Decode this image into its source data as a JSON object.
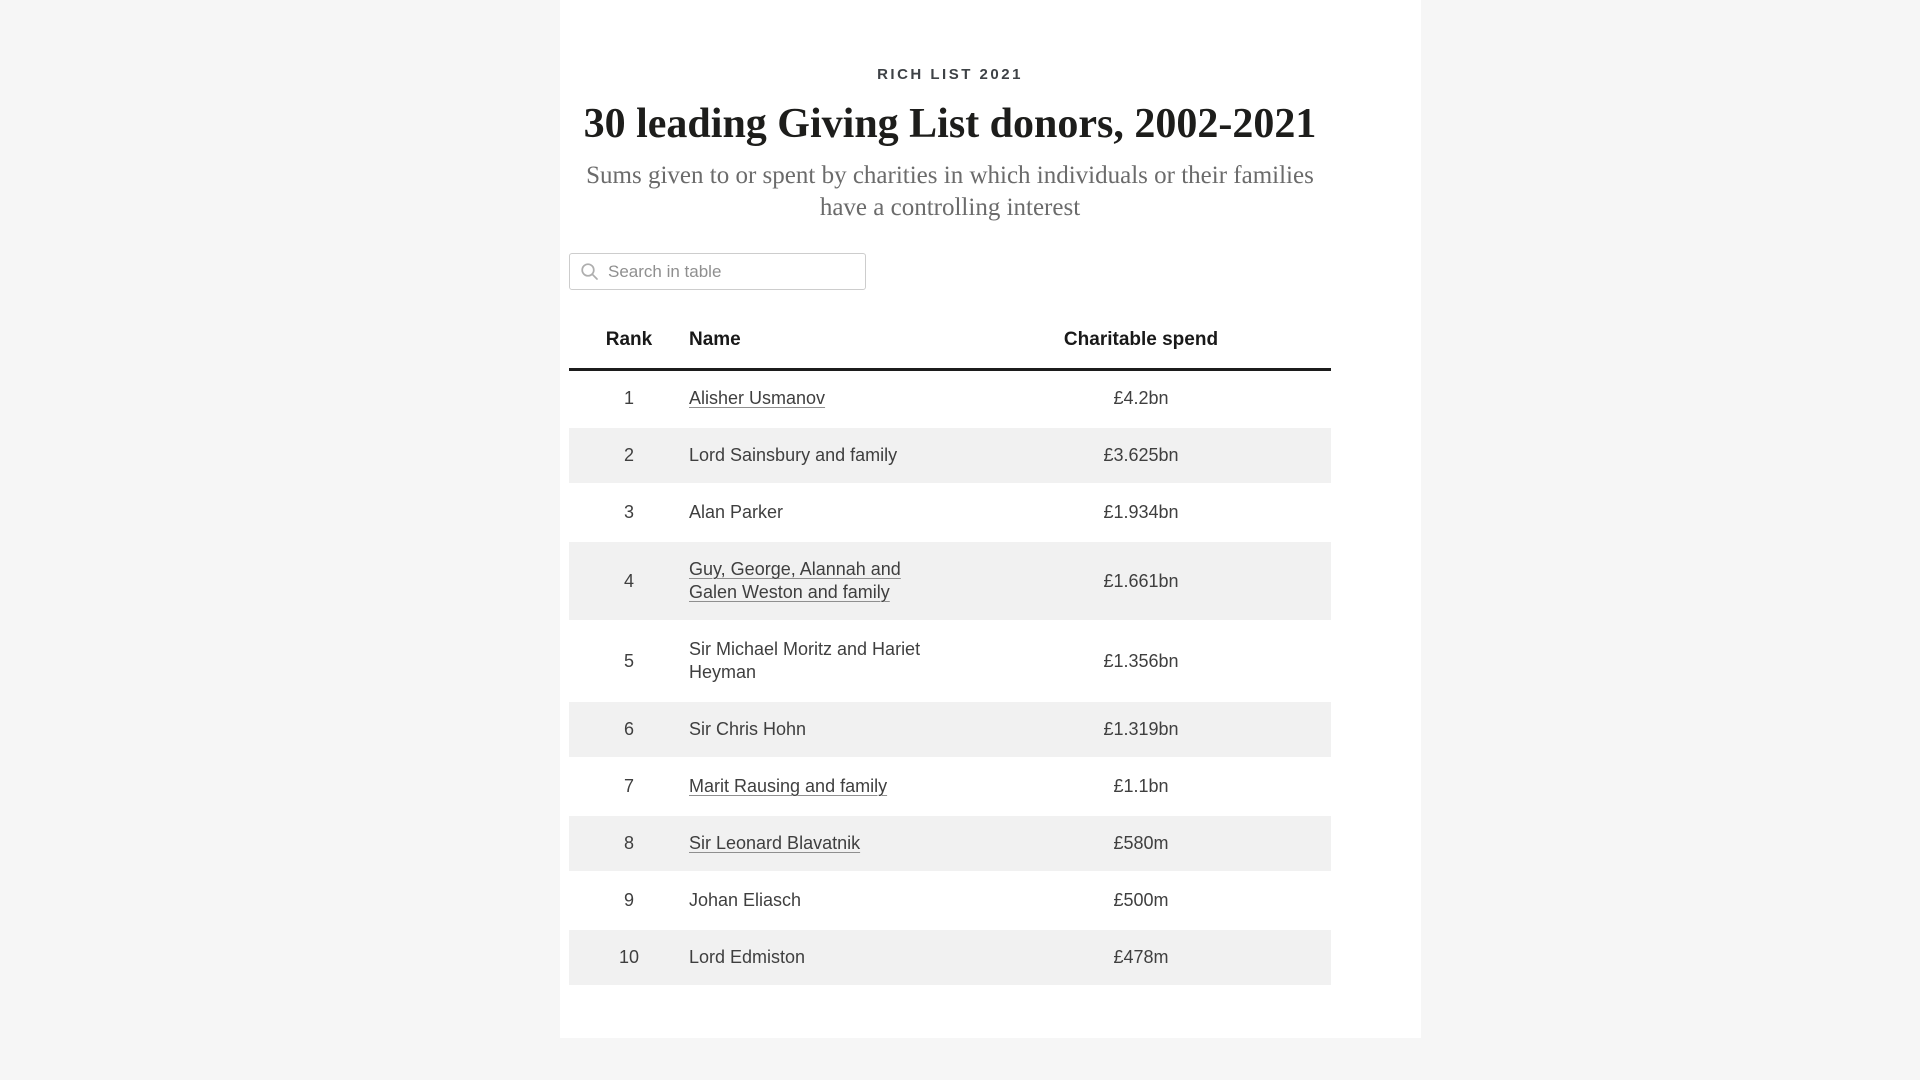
{
  "page": {
    "background_color": "#f6f6f6",
    "card_color": "#ffffff",
    "stripe_color": "#f1f1f1",
    "text_color": "#3f3f3f",
    "heading_color": "#1d1d1b"
  },
  "header": {
    "kicker": "RICH LIST 2021",
    "title": "30 leading Giving List donors, 2002-2021",
    "subtitle": "Sums given to or spent by charities in which individuals or their families have a controlling interest"
  },
  "search": {
    "placeholder": "Search in table",
    "icon": "search-icon"
  },
  "table": {
    "columns": [
      "Rank",
      "Name",
      "Charitable spend"
    ],
    "rows": [
      {
        "rank": "1",
        "name": "Alisher Usmanov",
        "spend": "£4.2bn",
        "linked": true
      },
      {
        "rank": "2",
        "name": "Lord Sainsbury and family",
        "spend": "£3.625bn",
        "linked": false
      },
      {
        "rank": "3",
        "name": "Alan Parker",
        "spend": "£1.934bn",
        "linked": false
      },
      {
        "rank": "4",
        "name": "Guy, George, Alannah and Galen Weston and family",
        "spend": "£1.661bn",
        "linked": true
      },
      {
        "rank": "5",
        "name": "Sir Michael Moritz and Hariet Heyman",
        "spend": "£1.356bn",
        "linked": false
      },
      {
        "rank": "6",
        "name": "Sir Chris Hohn",
        "spend": "£1.319bn",
        "linked": false
      },
      {
        "rank": "7",
        "name": "Marit Rausing and family",
        "spend": "£1.1bn",
        "linked": true
      },
      {
        "rank": "8",
        "name": "Sir Leonard Blavatnik",
        "spend": "£580m",
        "linked": true
      },
      {
        "rank": "9",
        "name": "Johan Eliasch",
        "spend": "£500m",
        "linked": false
      },
      {
        "rank": "10",
        "name": "Lord Edmiston",
        "spend": "£478m",
        "linked": false
      }
    ]
  }
}
